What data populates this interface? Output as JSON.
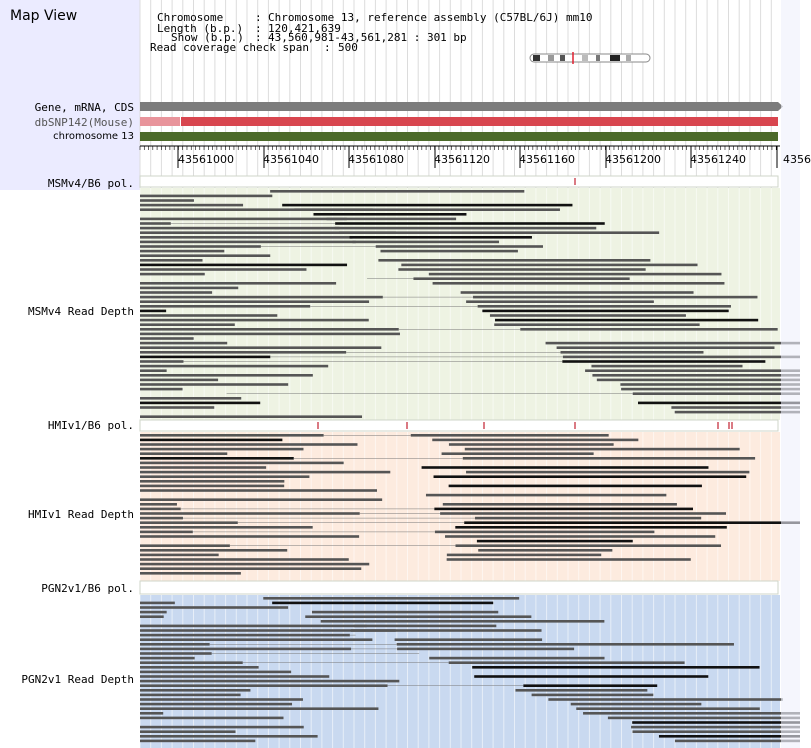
{
  "page": {
    "title": "Map View"
  },
  "info": {
    "chromosome_label": "Chromosome",
    "chromosome_value": "Chromosome 13, reference assembly (C57BL/6J) mm10",
    "length_label": "Length (b.p.)",
    "length_value": "120,421,639",
    "show_label": "Show (b.p.)",
    "show_value": "43,560,981-43,561,281 : 301 bp",
    "coverage_label": "Read coverage check span",
    "coverage_value": "500"
  },
  "tracks": {
    "gene_label": "Gene, mRNA, CDS",
    "snp_label": "dbSNP142(Mouse)",
    "chromosome_label": "chromosome 13"
  },
  "ruler": {
    "ticks": [
      "43561000",
      "43561040",
      "43561080",
      "43561120",
      "43561160",
      "43561200",
      "43561240",
      "4356"
    ]
  },
  "samples": [
    {
      "pol_label": "MSMv4/B6 pol.",
      "depth_label": "MSMv4 Read Depth",
      "color": "#eef3e3"
    },
    {
      "pol_label": "HMIv1/B6 pol.",
      "depth_label": "HMIv1 Read Depth",
      "color": "#fdebdf"
    },
    {
      "pol_label": "PGN2v1/B6 pol.",
      "depth_label": "PGN2v1 Read Depth",
      "color": "#c9d9f0"
    }
  ],
  "colors": {
    "gene_track": "#7c7c7c",
    "snp_track": "#d8464f",
    "snp_light": "#e8949b",
    "chromosome_track": "#4c6a2a",
    "read_dark": "#555555",
    "read_black": "#111111",
    "snp_tick": "#c02030",
    "left_panel": "#ebebff"
  }
}
